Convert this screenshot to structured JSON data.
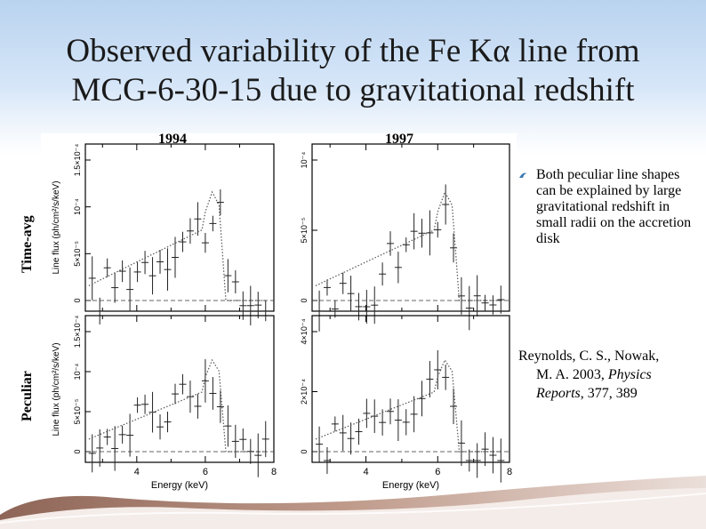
{
  "slide": {
    "title_line1": "Observed variability of the Fe Kα line from",
    "title_line2": "MCG-6-30-15 due to gravitational redshift",
    "column_labels": [
      "1994",
      "1997"
    ],
    "row_labels": [
      "Time-avg",
      "Peculiar"
    ],
    "bullet_text": "Both peculiar line shapes can be explained by large gravitational redshift in small radii on the accretion disk",
    "reference": {
      "authors_line": "Reynolds, C. S., Nowak,",
      "authors_cont": "M. A. 2003, ",
      "journal": "Physics Reports",
      "rest": ", 377, 389"
    }
  },
  "figure": {
    "xlabel": "Energy (keV)",
    "ylabel": "Line flux (ph/cm²/s/keV)",
    "x_ticks": [
      "4",
      "6",
      "8"
    ],
    "panel_y_ticks": {
      "p1": [
        "0",
        "5×10⁻⁵",
        "10⁻⁴",
        "1.5×10⁻⁴"
      ],
      "p2": [
        "0",
        "5×10⁻⁵",
        "10⁻⁴"
      ],
      "p3": [
        "0",
        "5×10⁻⁵",
        "10⁻⁴",
        "1.5×10⁻⁴"
      ],
      "p4": [
        "0",
        "2×10⁻⁴",
        "4×10⁻⁴"
      ]
    },
    "colors": {
      "data": "#222222",
      "model": "#555555",
      "background": "#ffffff"
    }
  }
}
